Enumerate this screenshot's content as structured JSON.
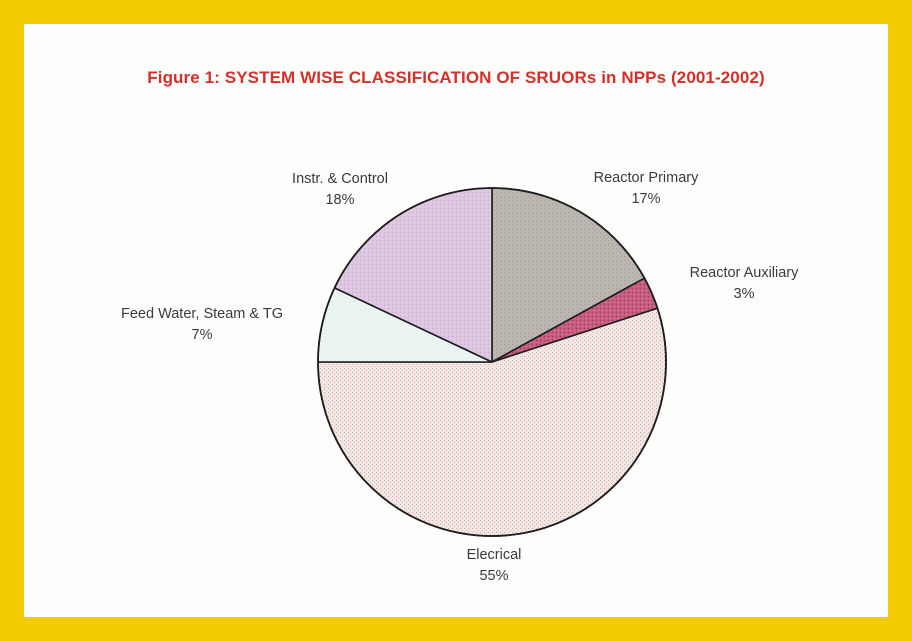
{
  "chart_data": {
    "type": "pie",
    "title": "Figure 1: SYSTEM WISE CLASSIFICATION OF SRUORs in NPPs (2001-2002)",
    "start_angle_deg": 0,
    "direction": "clockwise",
    "slices": [
      {
        "label": "Reactor Primary",
        "value": 17,
        "value_label": "17%",
        "color": "#bfb9b4",
        "pattern": "pat-grey"
      },
      {
        "label": "Reactor Auxiliary",
        "value": 3,
        "value_label": "3%",
        "color": "#c2547a",
        "pattern": "pat-pink"
      },
      {
        "label": "Elecrical",
        "value": 55,
        "value_label": "55%",
        "color": "#f1e2e0",
        "pattern": "pat-dots"
      },
      {
        "label": "Feed Water, Steam & TG",
        "value": 7,
        "value_label": "7%",
        "color": "#e8f3f2",
        "pattern": "pat-mint"
      },
      {
        "label": "Instr. & Control",
        "value": 18,
        "value_label": "18%",
        "color": "#dcc4de",
        "pattern": "pat-lilac"
      }
    ]
  }
}
